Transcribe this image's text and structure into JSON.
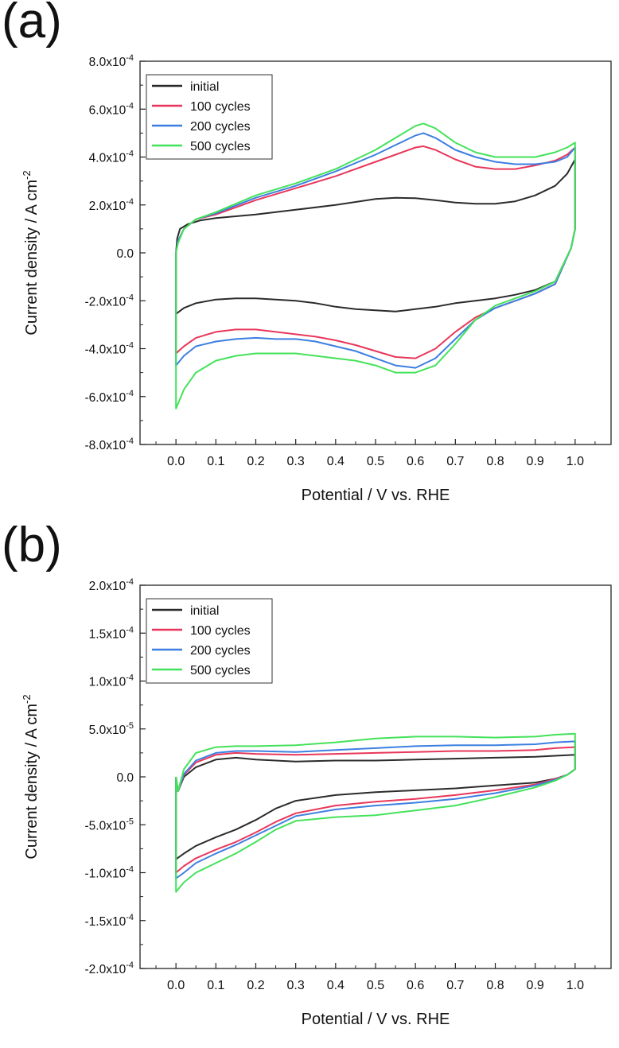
{
  "chart_data": [
    {
      "type": "line",
      "panel_label": "(a)",
      "xlabel": "Potential / V vs. RHE",
      "ylabel_main": "Current density / A cm",
      "ylabel_sup": "-2",
      "xlim": [
        -0.09,
        1.09
      ],
      "ylim": [
        -0.0008,
        0.0008
      ],
      "x_ticks": [
        "0.0",
        "0.1",
        "0.2",
        "0.3",
        "0.4",
        "0.5",
        "0.6",
        "0.7",
        "0.8",
        "0.9",
        "1.0"
      ],
      "y_ticks": [
        {
          "mantissa": "8.0x10",
          "exp": "-4",
          "value": 0.0008
        },
        {
          "mantissa": "6.0x10",
          "exp": "-4",
          "value": 0.0006
        },
        {
          "mantissa": "4.0x10",
          "exp": "-4",
          "value": 0.0004
        },
        {
          "mantissa": "2.0x10",
          "exp": "-4",
          "value": 0.0002
        },
        {
          "mantissa": "0.0",
          "exp": "",
          "value": 0
        },
        {
          "mantissa": "-2.0x10",
          "exp": "-4",
          "value": -0.0002
        },
        {
          "mantissa": "-4.0x10",
          "exp": "-4",
          "value": -0.0004
        },
        {
          "mantissa": "-6.0x10",
          "exp": "-4",
          "value": -0.0006
        },
        {
          "mantissa": "-8.0x10",
          "exp": "-4",
          "value": -0.0008
        }
      ],
      "legend_position": "top-left",
      "series": [
        {
          "name": "initial",
          "color": "#2b2b2b",
          "x": [
            0,
            0.003,
            0.01,
            0.03,
            0.06,
            0.1,
            0.2,
            0.3,
            0.4,
            0.5,
            0.55,
            0.6,
            0.65,
            0.7,
            0.75,
            0.8,
            0.85,
            0.9,
            0.95,
            0.98,
            1.0,
            1.0,
            0.99,
            0.95,
            0.9,
            0.85,
            0.8,
            0.75,
            0.7,
            0.65,
            0.6,
            0.55,
            0.5,
            0.45,
            0.4,
            0.35,
            0.3,
            0.25,
            0.2,
            0.15,
            0.1,
            0.05,
            0.02,
            0.0,
            0.0
          ],
          "y": [
            0,
            6e-05,
            0.0001,
            0.00012,
            0.000135,
            0.000145,
            0.00016,
            0.00018,
            0.0002,
            0.000225,
            0.00023,
            0.000228,
            0.00022,
            0.00021,
            0.000205,
            0.000205,
            0.000215,
            0.00024,
            0.00028,
            0.00033,
            0.00039,
            0.0001,
            2e-05,
            -0.00012,
            -0.000155,
            -0.000175,
            -0.00019,
            -0.0002,
            -0.00021,
            -0.000225,
            -0.000235,
            -0.000245,
            -0.00024,
            -0.000235,
            -0.000225,
            -0.00021,
            -0.0002,
            -0.000195,
            -0.00019,
            -0.00019,
            -0.000195,
            -0.00021,
            -0.00023,
            -0.000255,
            0
          ]
        },
        {
          "name": "100 cycles",
          "color": "#e8375a",
          "x": [
            0,
            0.005,
            0.02,
            0.05,
            0.1,
            0.2,
            0.3,
            0.4,
            0.5,
            0.55,
            0.6,
            0.62,
            0.65,
            0.7,
            0.75,
            0.8,
            0.85,
            0.9,
            0.95,
            0.98,
            1.0,
            1.0,
            0.99,
            0.95,
            0.9,
            0.85,
            0.8,
            0.75,
            0.7,
            0.65,
            0.6,
            0.55,
            0.5,
            0.45,
            0.4,
            0.35,
            0.3,
            0.25,
            0.2,
            0.15,
            0.1,
            0.05,
            0.02,
            0.0,
            0.0
          ],
          "y": [
            0,
            5e-05,
            0.0001,
            0.00014,
            0.00016,
            0.00022,
            0.00027,
            0.00032,
            0.00038,
            0.00041,
            0.00044,
            0.000445,
            0.00043,
            0.00039,
            0.00036,
            0.00035,
            0.00035,
            0.000365,
            0.000385,
            0.00041,
            0.00044,
            0.0001,
            2e-05,
            -0.00013,
            -0.00017,
            -0.0002,
            -0.00023,
            -0.00027,
            -0.00033,
            -0.0004,
            -0.00044,
            -0.000435,
            -0.00041,
            -0.000385,
            -0.000365,
            -0.00035,
            -0.00034,
            -0.00033,
            -0.00032,
            -0.00032,
            -0.00033,
            -0.000355,
            -0.00039,
            -0.00042,
            0
          ]
        },
        {
          "name": "200 cycles",
          "color": "#3d7fe0",
          "x": [
            0,
            0.005,
            0.02,
            0.05,
            0.1,
            0.2,
            0.3,
            0.4,
            0.5,
            0.55,
            0.6,
            0.62,
            0.65,
            0.7,
            0.75,
            0.8,
            0.85,
            0.9,
            0.95,
            0.98,
            1.0,
            1.0,
            0.99,
            0.95,
            0.9,
            0.85,
            0.8,
            0.75,
            0.7,
            0.65,
            0.6,
            0.55,
            0.5,
            0.45,
            0.4,
            0.35,
            0.3,
            0.25,
            0.2,
            0.15,
            0.1,
            0.05,
            0.02,
            0.0,
            0.0
          ],
          "y": [
            0,
            5e-05,
            0.0001,
            0.00014,
            0.000165,
            0.00023,
            0.00028,
            0.00034,
            0.00041,
            0.00045,
            0.00049,
            0.0005,
            0.00048,
            0.00043,
            0.0004,
            0.00038,
            0.00037,
            0.00037,
            0.00038,
            0.0004,
            0.00044,
            0.0001,
            2e-05,
            -0.00013,
            -0.00017,
            -0.0002,
            -0.00023,
            -0.00028,
            -0.00036,
            -0.00044,
            -0.00048,
            -0.00047,
            -0.00044,
            -0.00041,
            -0.00039,
            -0.00037,
            -0.00036,
            -0.00036,
            -0.000355,
            -0.00036,
            -0.00037,
            -0.00039,
            -0.00043,
            -0.00047,
            0
          ]
        },
        {
          "name": "500 cycles",
          "color": "#44e25a",
          "x": [
            0,
            0.005,
            0.02,
            0.05,
            0.1,
            0.2,
            0.3,
            0.4,
            0.5,
            0.55,
            0.6,
            0.62,
            0.65,
            0.7,
            0.75,
            0.8,
            0.85,
            0.9,
            0.95,
            0.98,
            1.0,
            1.0,
            0.99,
            0.95,
            0.9,
            0.85,
            0.8,
            0.75,
            0.7,
            0.65,
            0.6,
            0.55,
            0.5,
            0.45,
            0.4,
            0.35,
            0.3,
            0.25,
            0.2,
            0.15,
            0.1,
            0.05,
            0.02,
            0.0,
            0.0
          ],
          "y": [
            0,
            4e-05,
            0.0001,
            0.00014,
            0.00017,
            0.00024,
            0.00029,
            0.00035,
            0.00043,
            0.00048,
            0.00053,
            0.00054,
            0.00052,
            0.00046,
            0.00042,
            0.0004,
            0.0004,
            0.0004,
            0.00042,
            0.00044,
            0.00046,
            0.0001,
            2e-05,
            -0.00012,
            -0.00016,
            -0.00019,
            -0.00022,
            -0.00028,
            -0.00038,
            -0.00047,
            -0.0005,
            -0.0005,
            -0.00047,
            -0.00045,
            -0.00044,
            -0.00043,
            -0.00042,
            -0.00042,
            -0.00042,
            -0.00043,
            -0.00045,
            -0.0005,
            -0.00057,
            -0.00065,
            0
          ]
        }
      ]
    },
    {
      "type": "line",
      "panel_label": "(b)",
      "xlabel": "Potential / V vs. RHE",
      "ylabel_main": "Current density / A cm",
      "ylabel_sup": "-2",
      "xlim": [
        -0.09,
        1.09
      ],
      "ylim": [
        -0.0002,
        0.0002
      ],
      "x_ticks": [
        "0.0",
        "0.1",
        "0.2",
        "0.3",
        "0.4",
        "0.5",
        "0.6",
        "0.7",
        "0.8",
        "0.9",
        "1.0"
      ],
      "y_ticks": [
        {
          "mantissa": "2.0x10",
          "exp": "-4",
          "value": 0.0002
        },
        {
          "mantissa": "1.5x10",
          "exp": "-4",
          "value": 0.00015
        },
        {
          "mantissa": "1.0x10",
          "exp": "-4",
          "value": 0.0001
        },
        {
          "mantissa": "5.0x10",
          "exp": "-5",
          "value": 5e-05
        },
        {
          "mantissa": "0.0",
          "exp": "",
          "value": 0
        },
        {
          "mantissa": "-5.0x10",
          "exp": "-5",
          "value": -5e-05
        },
        {
          "mantissa": "-1.0x10",
          "exp": "-4",
          "value": -0.0001
        },
        {
          "mantissa": "-1.5x10",
          "exp": "-4",
          "value": -0.00015
        },
        {
          "mantissa": "-2.0x10",
          "exp": "-4",
          "value": -0.0002
        }
      ],
      "legend_position": "top-left",
      "series": [
        {
          "name": "initial",
          "color": "#2b2b2b",
          "x": [
            0,
            0.005,
            0.02,
            0.05,
            0.1,
            0.15,
            0.2,
            0.3,
            0.4,
            0.5,
            0.6,
            0.7,
            0.8,
            0.9,
            0.95,
            1.0,
            1.0,
            0.98,
            0.95,
            0.9,
            0.8,
            0.7,
            0.6,
            0.5,
            0.4,
            0.3,
            0.25,
            0.2,
            0.15,
            0.1,
            0.05,
            0.02,
            0.0,
            0.0
          ],
          "y": [
            0,
            -1.5e-05,
            0.0,
            1e-05,
            1.8e-05,
            2e-05,
            1.8e-05,
            1.6e-05,
            1.7e-05,
            1.7e-05,
            1.8e-05,
            1.9e-05,
            2e-05,
            2.1e-05,
            2.2e-05,
            2.3e-05,
            8e-06,
            2e-06,
            -2e-06,
            -6e-06,
            -9e-06,
            -1.2e-05,
            -1.4e-05,
            -1.6e-05,
            -1.9e-05,
            -2.5e-05,
            -3.3e-05,
            -4.5e-05,
            -5.5e-05,
            -6.3e-05,
            -7.2e-05,
            -8e-05,
            -8.6e-05,
            0
          ]
        },
        {
          "name": "100 cycles",
          "color": "#e8375a",
          "x": [
            0,
            0.005,
            0.02,
            0.05,
            0.1,
            0.15,
            0.2,
            0.3,
            0.4,
            0.5,
            0.6,
            0.7,
            0.8,
            0.9,
            0.95,
            1.0,
            1.0,
            0.98,
            0.95,
            0.9,
            0.8,
            0.7,
            0.6,
            0.5,
            0.4,
            0.3,
            0.25,
            0.2,
            0.15,
            0.1,
            0.05,
            0.02,
            0.0,
            0.0
          ],
          "y": [
            0,
            -1.5e-05,
            2e-06,
            1.5e-05,
            2.3e-05,
            2.5e-05,
            2.4e-05,
            2.3e-05,
            2.4e-05,
            2.5e-05,
            2.6e-05,
            2.7e-05,
            2.7e-05,
            2.8e-05,
            3e-05,
            3.1e-05,
            8e-06,
            2e-06,
            -2e-06,
            -8e-06,
            -1.4e-05,
            -1.9e-05,
            -2.3e-05,
            -2.6e-05,
            -3e-05,
            -3.8e-05,
            -4.7e-05,
            -5.8e-05,
            -6.8e-05,
            -7.6e-05,
            -8.5e-05,
            -9.3e-05,
            -0.0001,
            0
          ]
        },
        {
          "name": "200 cycles",
          "color": "#3d7fe0",
          "x": [
            0,
            0.005,
            0.02,
            0.05,
            0.1,
            0.15,
            0.2,
            0.3,
            0.4,
            0.5,
            0.6,
            0.7,
            0.8,
            0.9,
            0.95,
            1.0,
            1.0,
            0.98,
            0.95,
            0.9,
            0.8,
            0.7,
            0.6,
            0.5,
            0.4,
            0.3,
            0.25,
            0.2,
            0.15,
            0.1,
            0.05,
            0.02,
            0.0,
            0.0
          ],
          "y": [
            0,
            -1.5e-05,
            3e-06,
            1.7e-05,
            2.5e-05,
            2.7e-05,
            2.7e-05,
            2.6e-05,
            2.8e-05,
            3e-05,
            3.2e-05,
            3.3e-05,
            3.3e-05,
            3.4e-05,
            3.6e-05,
            3.7e-05,
            8e-06,
            2e-06,
            -3e-06,
            -9e-06,
            -1.7e-05,
            -2.3e-05,
            -2.7e-05,
            -3e-05,
            -3.4e-05,
            -4.1e-05,
            -5.1e-05,
            -6.1e-05,
            -7.1e-05,
            -8e-05,
            -9e-05,
            -0.0001,
            -0.000106,
            0
          ]
        },
        {
          "name": "500 cycles",
          "color": "#44e25a",
          "x": [
            0,
            0.005,
            0.02,
            0.05,
            0.1,
            0.15,
            0.2,
            0.3,
            0.4,
            0.5,
            0.6,
            0.7,
            0.8,
            0.9,
            0.95,
            1.0,
            1.0,
            0.98,
            0.95,
            0.9,
            0.8,
            0.7,
            0.6,
            0.5,
            0.4,
            0.3,
            0.25,
            0.2,
            0.15,
            0.1,
            0.05,
            0.02,
            0.0,
            0.0
          ],
          "y": [
            0,
            -1.5e-05,
            8e-06,
            2.5e-05,
            3.1e-05,
            3.2e-05,
            3.2e-05,
            3.3e-05,
            3.6e-05,
            4e-05,
            4.2e-05,
            4.2e-05,
            4.1e-05,
            4.2e-05,
            4.4e-05,
            4.5e-05,
            8e-06,
            2e-06,
            -4e-06,
            -1.1e-05,
            -2.1e-05,
            -3e-05,
            -3.5e-05,
            -4e-05,
            -4.2e-05,
            -4.6e-05,
            -5.5e-05,
            -6.8e-05,
            -8e-05,
            -9e-05,
            -0.0001,
            -0.00011,
            -0.00012,
            0
          ]
        }
      ]
    }
  ]
}
